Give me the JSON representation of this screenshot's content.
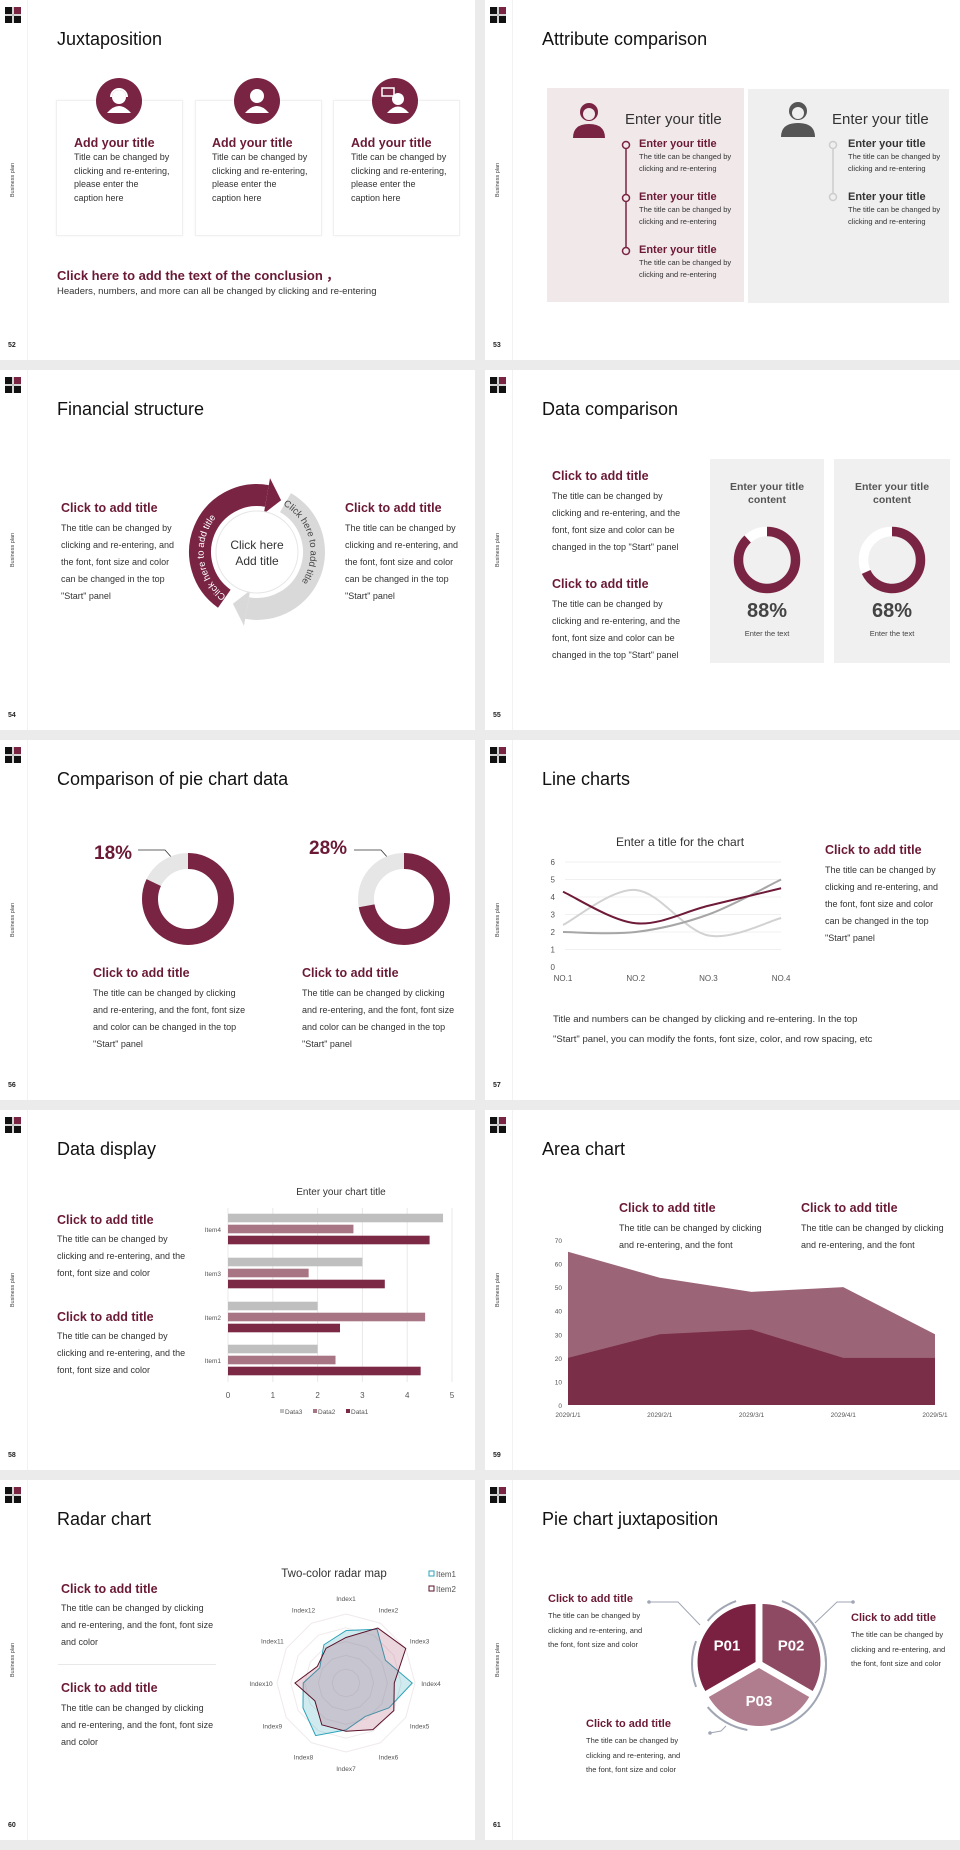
{
  "deck": {
    "side_label": "Business plan"
  },
  "colors": {
    "accent": "#6b1a36",
    "maroon": "#7a2444",
    "gray": "#bfbfbf",
    "panel_pink": "#f1e8ea",
    "panel_gray": "#efefef"
  },
  "slides": [
    {
      "page": "52",
      "title": "Juxtaposition",
      "cards": [
        {
          "icon": "female-headset-user-icon",
          "title": "Add your title",
          "body": "Title can be changed by clicking and re-entering, please enter the caption here"
        },
        {
          "icon": "female-user-icon",
          "title": "Add your title",
          "body": "Title can be changed by clicking and re-entering, please enter the caption here"
        },
        {
          "icon": "user-speech-bubble-icon",
          "title": "Add your title",
          "body": "Title can be changed by clicking and re-entering, please enter the caption here"
        }
      ],
      "conclusion_title": "Click here to add the text of the conclusion ，",
      "conclusion_body": "Headers, numbers, and more can all be changed by clicking and re-entering"
    },
    {
      "page": "53",
      "title": "Attribute comparison",
      "left": {
        "icon": "female-user-icon",
        "heading": "Enter your title",
        "items": [
          {
            "title": "Enter your title",
            "body": "The title can be changed by clicking and re-entering"
          },
          {
            "title": "Enter your title",
            "body": "The title can be changed by clicking and re-entering"
          },
          {
            "title": "Enter your title",
            "body": "The title can be changed by clicking and re-entering"
          }
        ]
      },
      "right": {
        "icon": "male-user-icon",
        "heading": "Enter your title",
        "items": [
          {
            "title": "Enter your title",
            "body": "The title can be changed by clicking and re-entering"
          },
          {
            "title": "Enter your title",
            "body": "The title can be changed by clicking and re-entering"
          }
        ]
      }
    },
    {
      "page": "54",
      "title": "Financial structure",
      "left": {
        "title": "Click to add title",
        "body": "The title can be changed by clicking and re-entering, and the font, font size and color can be changed in the top \"Start\" panel"
      },
      "right": {
        "title": "Click to add title",
        "body": "The title can be changed by clicking and re-entering, and the font, font size and color can be changed in the top \"Start\" panel"
      },
      "cycle": {
        "arc_left": "Click here to add title",
        "arc_right": "Click here to add title",
        "center_line1": "Click here",
        "center_line2": "Add title"
      }
    },
    {
      "page": "55",
      "title": "Data comparison",
      "blocks": [
        {
          "title": "Click to add title",
          "body": "The title can be changed by clicking and re-entering, and the font, font size and color can be changed in the top \"Start\" panel"
        },
        {
          "title": "Click to add title",
          "body": "The title can be changed by clicking and re-entering, and the font, font size and color can be changed in the top \"Start\" panel"
        }
      ],
      "panels": [
        {
          "title": "Enter your title content",
          "percent": 88,
          "value_label": "88%",
          "caption": "Enter the text"
        },
        {
          "title": "Enter your title content",
          "percent": 68,
          "value_label": "68%",
          "caption": "Enter the text"
        }
      ]
    },
    {
      "page": "56",
      "title": "Comparison of pie chart data",
      "pies": [
        {
          "percent": 18,
          "label": "18%",
          "title": "Click to add title",
          "body": "The title can be changed by clicking and re-entering, and the font, font size and color can be changed in the top \"Start\" panel"
        },
        {
          "percent": 28,
          "label": "28%",
          "title": "Click to add title",
          "body": "The title can be changed by clicking and re-entering, and the font, font size and color can be changed in the top \"Start\" panel"
        }
      ]
    },
    {
      "page": "57",
      "title": "Line charts",
      "side": {
        "title": "Click to add title",
        "body": "The title can be changed by clicking and re-entering, and the font, font size and color can be changed in the top \"Start\" panel"
      },
      "note": "Title and numbers can be changed by clicking and re-entering. In the top \"Start\" panel, you can modify the fonts, font size, color, and row spacing, etc"
    },
    {
      "page": "58",
      "title": "Data display",
      "blocks": [
        {
          "title": "Click to add title",
          "body": "The title can be changed by clicking and re-entering, and the font, font size and color"
        },
        {
          "title": "Click to add title",
          "body": "The title can be changed by clicking and re-entering, and the font, font size and color"
        }
      ]
    },
    {
      "page": "59",
      "title": "Area chart",
      "blocks": [
        {
          "title": "Click to add title",
          "body": "The title can be changed by clicking and re-entering, and the font"
        },
        {
          "title": "Click to add title",
          "body": "The title can be changed by clicking and re-entering, and the font"
        }
      ]
    },
    {
      "page": "60",
      "title": "Radar chart",
      "blocks": [
        {
          "title": "Click to add title",
          "body": "The title can be changed by clicking and re-entering, and the font, font size and color"
        },
        {
          "title": "Click to add title",
          "body": "The title can be changed by clicking and re-entering, and the font, font size and color"
        }
      ]
    },
    {
      "page": "61",
      "title": "Pie chart juxtaposition",
      "blocks": [
        {
          "title": "Click to add title",
          "body": "The title can be changed by clicking and re-entering, and the font, font size and color"
        },
        {
          "title": "Click to add title",
          "body": "The title can be changed by clicking and re-entering, and the font, font size and color"
        },
        {
          "title": "Click to add title",
          "body": "The title can be changed by clicking and re-entering, and the font, font size and color"
        }
      ],
      "segments": [
        {
          "label": "P01",
          "color": "#7a2040"
        },
        {
          "label": "P02",
          "color": "#8e4a62"
        },
        {
          "label": "P03",
          "color": "#b07d8e"
        }
      ]
    }
  ],
  "chart_data": [
    {
      "type": "line",
      "slide": "57",
      "title": "Enter a title for the chart",
      "smooth": true,
      "grid": true,
      "categories": [
        "NO.1",
        "NO.2",
        "NO.3",
        "NO.4"
      ],
      "ylim": [
        0,
        6
      ],
      "yticks": [
        0,
        1,
        2,
        3,
        4,
        5,
        6
      ],
      "series": [
        {
          "values": [
            4.3,
            2.5,
            3.5,
            4.5
          ],
          "color": "#6e1a38"
        },
        {
          "values": [
            2.4,
            4.4,
            1.8,
            2.8
          ],
          "color": "#d2d2d2"
        },
        {
          "values": [
            2,
            2,
            3,
            5
          ],
          "color": "#a6a6a6"
        }
      ]
    },
    {
      "type": "bar",
      "slide": "58",
      "orientation": "horizontal",
      "title": "Enter your chart title",
      "grid": true,
      "legend": "bottom",
      "categories": [
        "Item1",
        "Item2",
        "Item3",
        "Item4"
      ],
      "xlim": [
        0,
        5
      ],
      "xticks": [
        0,
        1,
        2,
        3,
        4,
        5
      ],
      "series": [
        {
          "name": "Data1",
          "values": [
            4.3,
            2.5,
            3.5,
            4.5
          ],
          "color": "#7b2944"
        },
        {
          "name": "Data2",
          "values": [
            2.4,
            4.4,
            1.8,
            2.8
          ],
          "color": "#a87584"
        },
        {
          "name": "Data3",
          "values": [
            2,
            2,
            3,
            4.8
          ],
          "color": "#bfbfbf"
        }
      ],
      "legend_order": [
        "Data3",
        "Data2",
        "Data1"
      ]
    },
    {
      "type": "area",
      "slide": "59",
      "categories": [
        "2029/1/1",
        "2029/2/1",
        "2029/3/1",
        "2029/4/1",
        "2029/5/1"
      ],
      "ylim": [
        0,
        70
      ],
      "yticks": [
        0,
        10,
        20,
        30,
        40,
        50,
        60,
        70
      ],
      "series": [
        {
          "values": [
            65,
            54,
            48,
            50,
            30
          ],
          "color": "#9c6577"
        },
        {
          "values": [
            20,
            30,
            32,
            20,
            20
          ],
          "color": "#7a2e48"
        }
      ]
    },
    {
      "type": "radar",
      "slide": "60",
      "title": "Two-color radar map",
      "legend": "top-right",
      "rlim": [
        0,
        5
      ],
      "categories": [
        "Index1",
        "Index2",
        "Index3",
        "Index4",
        "Index5",
        "Index6",
        "Index7",
        "Index8",
        "Index9",
        "Index10",
        "Index11",
        "Index12"
      ],
      "series": [
        {
          "name": "Item1",
          "values": [
            3.8,
            4.5,
            3.3,
            4.8,
            3.6,
            2.8,
            3.4,
            4.4,
            3.6,
            3.1,
            2.2,
            3.2
          ],
          "color": "#2aa3b8"
        },
        {
          "name": "Item2",
          "values": [
            3.3,
            4.6,
            5.0,
            3.5,
            4.0,
            3.9,
            3.5,
            3.5,
            2.6,
            3.7,
            2.4,
            2.9
          ],
          "color": "#5a1028"
        }
      ]
    }
  ]
}
